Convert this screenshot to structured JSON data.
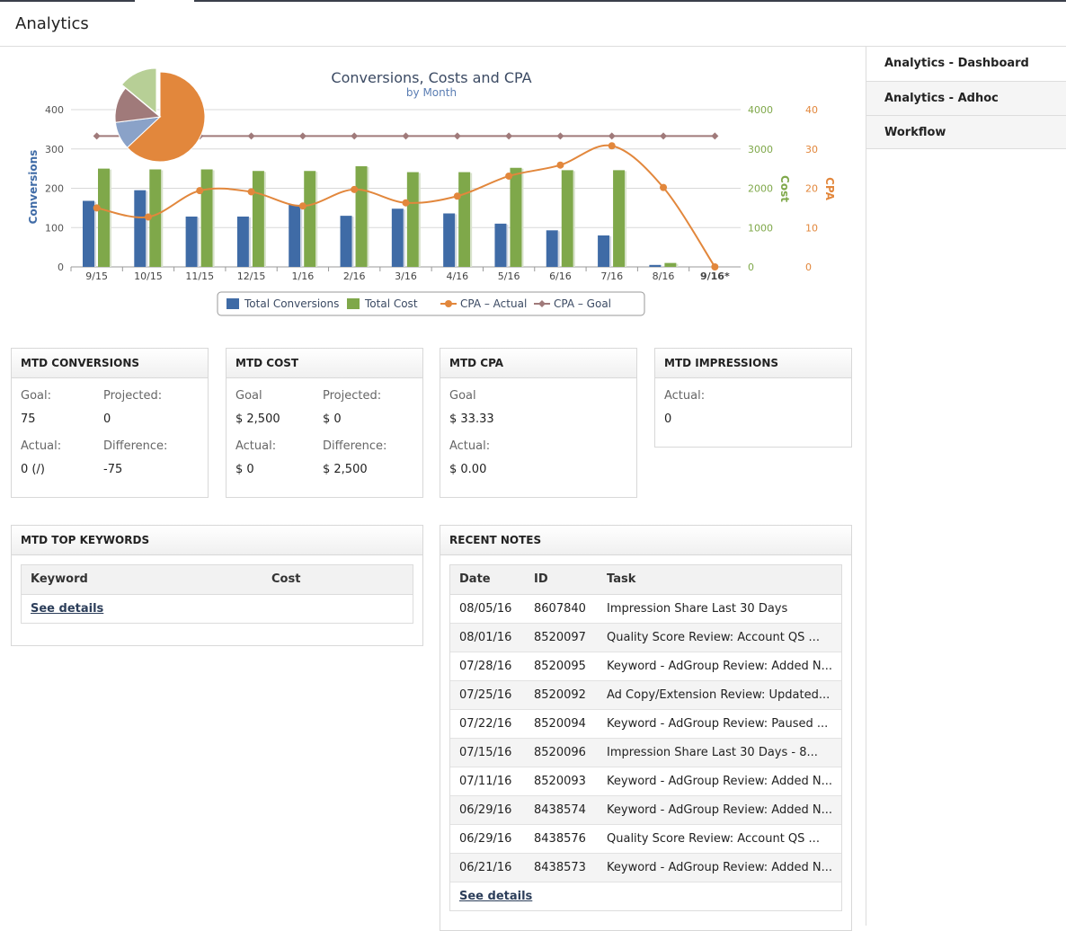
{
  "header": {
    "title": "Analytics"
  },
  "sidebar": {
    "items": [
      {
        "label": "Analytics - Dashboard"
      },
      {
        "label": "Analytics - Adhoc"
      },
      {
        "label": "Workflow"
      }
    ]
  },
  "chart_data": {
    "type": "bar",
    "title": "Conversions, Costs and CPA",
    "subtitle": "by Month",
    "categories": [
      "9/15",
      "10/15",
      "11/15",
      "12/15",
      "1/16",
      "2/16",
      "3/16",
      "4/16",
      "5/16",
      "6/16",
      "7/16",
      "8/16",
      "9/16*"
    ],
    "series": [
      {
        "name": "Total Conversions",
        "type": "bar",
        "axis": "left",
        "color": "#3f6ba6",
        "values": [
          168,
          195,
          128,
          128,
          158,
          130,
          148,
          136,
          110,
          93,
          80,
          5,
          0
        ]
      },
      {
        "name": "Total Cost",
        "type": "bar",
        "axis": "cost",
        "color": "#7fa84a",
        "values": [
          2500,
          2480,
          2480,
          2440,
          2440,
          2560,
          2410,
          2410,
          2520,
          2460,
          2460,
          100,
          0
        ]
      },
      {
        "name": "CPA – Actual",
        "type": "line",
        "axis": "cpa",
        "color": "#e2873c",
        "values": [
          15,
          12.7,
          19.4,
          19.1,
          15.5,
          19.7,
          16.3,
          18,
          23.1,
          25.9,
          30.8,
          20.2,
          0
        ]
      },
      {
        "name": "CPA – Goal",
        "type": "line",
        "axis": "cpa",
        "color": "#a07a7a",
        "values": [
          33.3,
          33.3,
          33.3,
          33.3,
          33.3,
          33.3,
          33.3,
          33.3,
          33.3,
          33.3,
          33.3,
          33.3,
          33.3
        ]
      }
    ],
    "axes": {
      "left": {
        "label": "Conversions",
        "range": [
          0,
          400
        ],
        "ticks": [
          "0",
          "100",
          "200",
          "300",
          "400"
        ],
        "color": "#3f6ba6"
      },
      "cost": {
        "label": "Cost",
        "range": [
          0,
          4000
        ],
        "ticks": [
          "0",
          "1000",
          "2000",
          "3000",
          "4000"
        ],
        "color": "#7fa84a"
      },
      "cpa": {
        "label": "CPA",
        "range": [
          0,
          40
        ],
        "ticks": [
          "0",
          "10",
          "20",
          "30",
          "40"
        ],
        "color": "#e2873c"
      }
    },
    "pie": {
      "slices": [
        {
          "value": 63,
          "color": "#e2873c"
        },
        {
          "value": 10,
          "color": "#8aa2c8"
        },
        {
          "value": 13,
          "color": "#a07a7a"
        },
        {
          "value": 14,
          "color": "#b7cf96"
        }
      ]
    },
    "grid": true,
    "legend": "bottom-center"
  },
  "cards": {
    "conversions": {
      "title": "MTD CONVERSIONS",
      "goal_label": "Goal:",
      "goal": "75",
      "projected_label": "Projected:",
      "projected": "0",
      "actual_label": "Actual:",
      "actual": "0 (/)",
      "difference_label": "Difference:",
      "difference": "-75"
    },
    "cost": {
      "title": "MTD COST",
      "goal_label": "Goal",
      "goal": "$ 2,500",
      "projected_label": "Projected:",
      "projected": "$ 0",
      "actual_label": "Actual:",
      "actual": "$ 0",
      "difference_label": "Difference:",
      "difference": "$ 2,500"
    },
    "cpa": {
      "title": "MTD CPA",
      "goal_label": "Goal",
      "goal": "$ 33.33",
      "actual_label": "Actual:",
      "actual": "$ 0.00"
    },
    "impressions": {
      "title": "MTD IMPRESSIONS",
      "actual_label": "Actual:",
      "actual": "0"
    }
  },
  "keywords": {
    "title": "MTD TOP KEYWORDS",
    "columns": [
      "Keyword",
      "Cost"
    ],
    "see_details": "See details"
  },
  "notes": {
    "title": "RECENT NOTES",
    "columns": [
      "Date",
      "ID",
      "Task"
    ],
    "rows": [
      [
        "08/05/16",
        "8607840",
        "Impression Share Last 30 Days"
      ],
      [
        "08/01/16",
        "8520097",
        "Quality Score Review: Account QS ..."
      ],
      [
        "07/28/16",
        "8520095",
        "Keyword - AdGroup Review: Added N..."
      ],
      [
        "07/25/16",
        "8520092",
        "Ad Copy/Extension Review: Updated..."
      ],
      [
        "07/22/16",
        "8520094",
        "Keyword - AdGroup Review: Paused ..."
      ],
      [
        "07/15/16",
        "8520096",
        "Impression Share Last 30 Days - 8..."
      ],
      [
        "07/11/16",
        "8520093",
        "Keyword - AdGroup Review: Added N..."
      ],
      [
        "06/29/16",
        "8438574",
        "Keyword - AdGroup Review: Added N..."
      ],
      [
        "06/29/16",
        "8438576",
        "Quality Score Review: Account QS ..."
      ],
      [
        "06/21/16",
        "8438573",
        "Keyword - AdGroup Review: Added N..."
      ]
    ],
    "see_details": "See details"
  }
}
